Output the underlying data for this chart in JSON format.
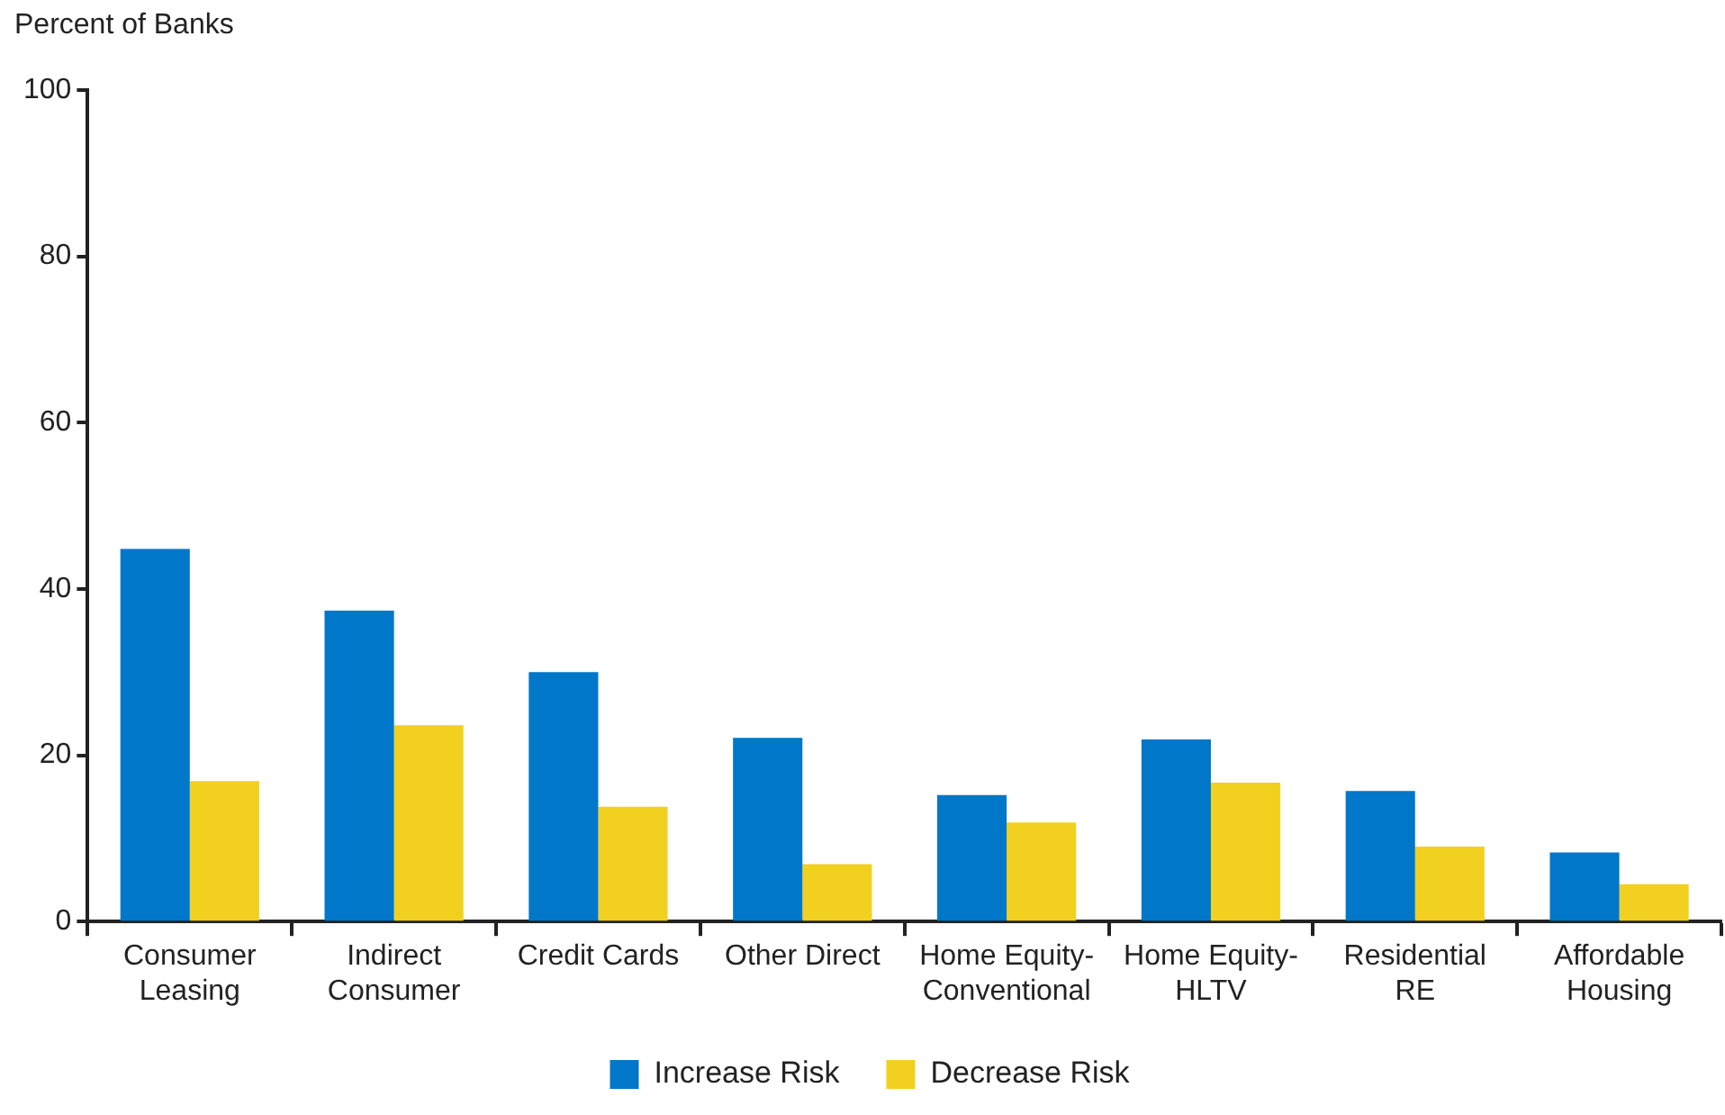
{
  "chart_data": {
    "type": "bar",
    "ylabel": "Percent of Banks",
    "categories": [
      "Consumer\nLeasing",
      "Indirect\nConsumer",
      "Credit Cards",
      "Other Direct",
      "Home Equity-\nConventional",
      "Home Equity-\nHLTV",
      "Residential\nRE",
      "Affordable\nHousing"
    ],
    "series": [
      {
        "name": "Increase Risk",
        "color": "#0077c8",
        "values": [
          44.8,
          37.4,
          30.0,
          22.1,
          15.2,
          21.9,
          15.7,
          8.3
        ]
      },
      {
        "name": "Decrease Risk",
        "color": "#f2d01f",
        "values": [
          16.9,
          23.6,
          13.8,
          6.9,
          11.9,
          16.7,
          9.0,
          4.5
        ]
      }
    ],
    "ylim": [
      0,
      100
    ],
    "yticks": [
      0,
      20,
      40,
      60,
      80,
      100
    ],
    "grid": false,
    "legend": "bottom"
  }
}
